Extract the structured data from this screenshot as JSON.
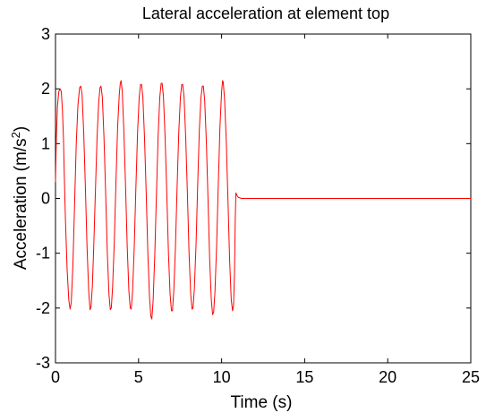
{
  "chart_data": {
    "type": "line",
    "title": "Lateral acceleration at element top",
    "xlabel": "Time (s)",
    "ylabel": {
      "prefix": "Acceleration (m/s",
      "superscript": "2",
      "suffix": ")"
    },
    "xlim": [
      0,
      25
    ],
    "ylim": [
      -3,
      3
    ],
    "xticks": [
      0,
      5,
      10,
      15,
      20,
      25
    ],
    "xtick_labels": [
      "0",
      "5",
      "10",
      "15",
      "20",
      "25"
    ],
    "yticks": [
      3,
      2,
      1,
      0,
      -1,
      -2,
      -3
    ],
    "ytick_labels": [
      "3",
      "2",
      "1",
      "0",
      "-1",
      "-2",
      "-3"
    ],
    "grid": false,
    "series": [
      {
        "color": "#ff0000",
        "points": [
          [
            0.0,
            0.3
          ],
          [
            0.05,
            1.1
          ],
          [
            0.12,
            1.7
          ],
          [
            0.2,
            1.95
          ],
          [
            0.28,
            2.0
          ],
          [
            0.35,
            1.95
          ],
          [
            0.42,
            1.6
          ],
          [
            0.48,
            1.1
          ],
          [
            0.52,
            0.55
          ],
          [
            0.6,
            -0.4
          ],
          [
            0.7,
            -1.3
          ],
          [
            0.8,
            -1.85
          ],
          [
            0.88,
            -2.02
          ],
          [
            0.95,
            -1.9
          ],
          [
            1.05,
            -1.2
          ],
          [
            1.15,
            -0.1
          ],
          [
            1.25,
            1.0
          ],
          [
            1.35,
            1.7
          ],
          [
            1.45,
            2.02
          ],
          [
            1.52,
            2.05
          ],
          [
            1.6,
            1.9
          ],
          [
            1.7,
            1.2
          ],
          [
            1.8,
            0.2
          ],
          [
            1.9,
            -0.9
          ],
          [
            2.0,
            -1.7
          ],
          [
            2.08,
            -2.03
          ],
          [
            2.14,
            -1.98
          ],
          [
            2.22,
            -1.6
          ],
          [
            2.3,
            -0.9
          ],
          [
            2.4,
            0.1
          ],
          [
            2.5,
            1.1
          ],
          [
            2.6,
            1.75
          ],
          [
            2.68,
            2.02
          ],
          [
            2.74,
            2.05
          ],
          [
            2.82,
            1.85
          ],
          [
            2.92,
            1.1
          ],
          [
            3.02,
            0.1
          ],
          [
            3.12,
            -1.0
          ],
          [
            3.22,
            -1.75
          ],
          [
            3.3,
            -2.03
          ],
          [
            3.36,
            -2.0
          ],
          [
            3.44,
            -1.6
          ],
          [
            3.54,
            -0.8
          ],
          [
            3.64,
            0.3
          ],
          [
            3.74,
            1.3
          ],
          [
            3.84,
            1.9
          ],
          [
            3.9,
            2.1
          ],
          [
            3.95,
            2.15
          ],
          [
            4.02,
            1.95
          ],
          [
            4.12,
            1.2
          ],
          [
            4.22,
            0.2
          ],
          [
            4.32,
            -0.9
          ],
          [
            4.42,
            -1.7
          ],
          [
            4.5,
            -2.0
          ],
          [
            4.56,
            -2.02
          ],
          [
            4.64,
            -1.7
          ],
          [
            4.74,
            -0.9
          ],
          [
            4.84,
            0.2
          ],
          [
            4.94,
            1.2
          ],
          [
            5.04,
            1.85
          ],
          [
            5.12,
            2.08
          ],
          [
            5.18,
            2.08
          ],
          [
            5.26,
            1.85
          ],
          [
            5.36,
            1.1
          ],
          [
            5.46,
            0.1
          ],
          [
            5.56,
            -1.0
          ],
          [
            5.66,
            -1.8
          ],
          [
            5.74,
            -2.15
          ],
          [
            5.8,
            -2.2
          ],
          [
            5.88,
            -1.85
          ],
          [
            5.98,
            -1.0
          ],
          [
            6.08,
            0.1
          ],
          [
            6.18,
            1.15
          ],
          [
            6.28,
            1.85
          ],
          [
            6.36,
            2.1
          ],
          [
            6.42,
            2.1
          ],
          [
            6.5,
            1.85
          ],
          [
            6.6,
            1.1
          ],
          [
            6.7,
            0.1
          ],
          [
            6.8,
            -1.0
          ],
          [
            6.9,
            -1.75
          ],
          [
            6.98,
            -2.05
          ],
          [
            7.04,
            -2.05
          ],
          [
            7.12,
            -1.7
          ],
          [
            7.22,
            -0.9
          ],
          [
            7.32,
            0.2
          ],
          [
            7.42,
            1.2
          ],
          [
            7.52,
            1.85
          ],
          [
            7.6,
            2.08
          ],
          [
            7.66,
            2.08
          ],
          [
            7.74,
            1.85
          ],
          [
            7.84,
            1.1
          ],
          [
            7.94,
            0.1
          ],
          [
            8.04,
            -1.0
          ],
          [
            8.14,
            -1.75
          ],
          [
            8.22,
            -2.02
          ],
          [
            8.28,
            -2.0
          ],
          [
            8.36,
            -1.65
          ],
          [
            8.46,
            -0.85
          ],
          [
            8.56,
            0.25
          ],
          [
            8.66,
            1.25
          ],
          [
            8.76,
            1.85
          ],
          [
            8.84,
            2.05
          ],
          [
            8.9,
            2.05
          ],
          [
            8.98,
            1.8
          ],
          [
            9.08,
            1.05
          ],
          [
            9.18,
            0.0
          ],
          [
            9.28,
            -1.1
          ],
          [
            9.38,
            -1.85
          ],
          [
            9.46,
            -2.12
          ],
          [
            9.52,
            -2.08
          ],
          [
            9.6,
            -1.7
          ],
          [
            9.7,
            -0.85
          ],
          [
            9.8,
            0.25
          ],
          [
            9.9,
            1.3
          ],
          [
            10.0,
            1.95
          ],
          [
            10.06,
            2.15
          ],
          [
            10.1,
            2.12
          ],
          [
            10.18,
            1.8
          ],
          [
            10.28,
            1.05
          ],
          [
            10.38,
            0.0
          ],
          [
            10.48,
            -1.1
          ],
          [
            10.58,
            -1.85
          ],
          [
            10.66,
            -2.05
          ],
          [
            10.72,
            -1.95
          ],
          [
            10.78,
            -1.3
          ],
          [
            10.82,
            -0.4
          ],
          [
            10.86,
            0.1
          ],
          [
            10.92,
            0.06
          ],
          [
            11.0,
            0.02
          ],
          [
            11.2,
            0.0
          ],
          [
            25.0,
            0.0
          ]
        ]
      }
    ]
  }
}
